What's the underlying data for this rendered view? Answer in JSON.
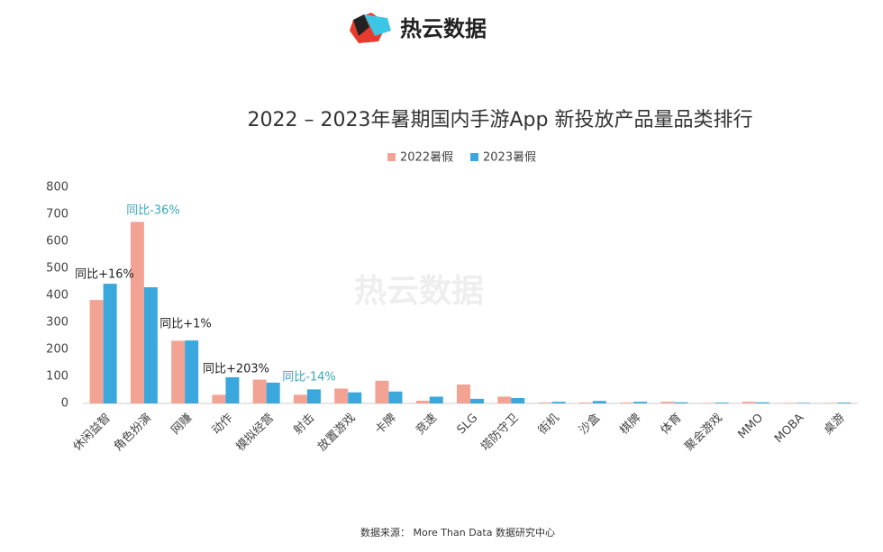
{
  "brand": "热云数据",
  "watermark": "热云数据",
  "source": "数据来源： More Than Data 数据研究中心",
  "chart_data": {
    "type": "bar",
    "title": "2022 – 2023年暑期国内手游App 新投放产品量品类排行",
    "categories": [
      "休闲益智",
      "角色扮演",
      "网赚",
      "动作",
      "模拟经营",
      "射击",
      "放置游戏",
      "卡牌",
      "竞速",
      "SLG",
      "塔防守卫",
      "街机",
      "沙盒",
      "棋牌",
      "体育",
      "聚会游戏",
      "MMO",
      "MOBA",
      "桌游"
    ],
    "series": [
      {
        "name": "2022暑假",
        "color": "#f2a394",
        "values": [
          383,
          672,
          232,
          32,
          88,
          32,
          55,
          84,
          10,
          70,
          25,
          3,
          3,
          3,
          6,
          2,
          6,
          2,
          2
        ]
      },
      {
        "name": "2023暑假",
        "color": "#3aa8dc",
        "values": [
          443,
          430,
          233,
          97,
          77,
          52,
          41,
          44,
          25,
          17,
          20,
          6,
          9,
          6,
          4,
          3,
          4,
          2,
          3
        ]
      }
    ],
    "ylim": [
      0,
      800
    ],
    "yticks": [
      0,
      100,
      200,
      300,
      400,
      500,
      600,
      700,
      800
    ],
    "grid": false,
    "annotations": [
      {
        "text": "同比+16%",
        "color": "#222222"
      },
      {
        "text": "同比-36%",
        "color": "#3aa6b9"
      },
      {
        "text": "同比+1%",
        "color": "#222222"
      },
      {
        "text": "同比+203%",
        "color": "#222222"
      },
      {
        "text": "同比-14%",
        "color": "#3aa6b9"
      }
    ]
  }
}
